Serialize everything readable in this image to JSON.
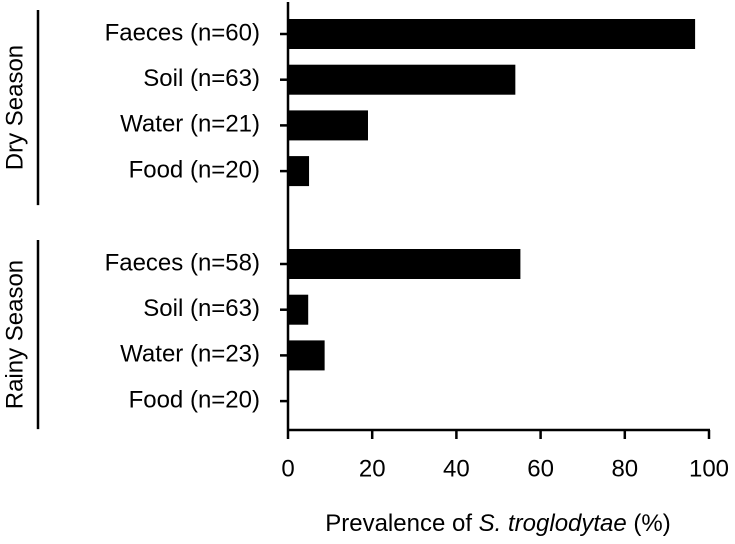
{
  "chart_data": {
    "type": "bar",
    "orientation": "horizontal",
    "color": "#000000",
    "groups": [
      {
        "name": "Dry Season",
        "categories": [
          "Faeces (n=60)",
          "Soil (n=63)",
          "Water (n=21)",
          "Food (n=20)"
        ],
        "values": [
          96.7,
          54,
          19,
          5
        ]
      },
      {
        "name": "Rainy Season",
        "categories": [
          "Faeces (n=58)",
          "Soil (n=63)",
          "Water (n=23)",
          "Food (n=20)"
        ],
        "values": [
          55.2,
          4.8,
          8.7,
          0
        ]
      }
    ],
    "xlim": [
      0,
      100
    ],
    "xticks": [
      0,
      20,
      40,
      60,
      80,
      100
    ],
    "grid": false,
    "xlabel": [
      {
        "text": "Prevalence of "
      },
      {
        "text": "S. troglodytae",
        "italic": true
      },
      {
        "text": " (%)"
      }
    ]
  }
}
